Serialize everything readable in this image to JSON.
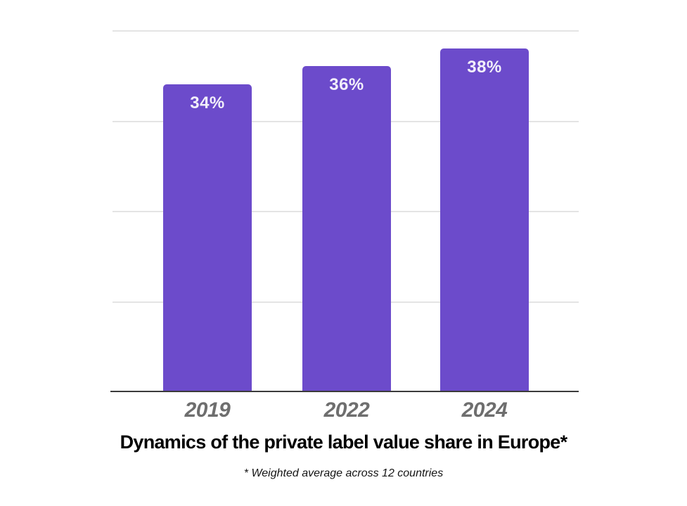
{
  "chart_data": {
    "type": "bar",
    "title": "Dynamics of the private label value share in Europe*",
    "footnote": "* Weighted average across 12 countries",
    "categories": [
      "2019",
      "2022",
      "2024"
    ],
    "values": [
      34,
      36,
      38
    ],
    "value_labels": [
      "34%",
      "36%",
      "38%"
    ],
    "ylabel": "",
    "xlabel": "",
    "ylim": [
      0,
      40
    ],
    "gridline_values": [
      40,
      30,
      20,
      10
    ],
    "grid": true,
    "legend": "none",
    "colors": {
      "bar": "#6c4bcb",
      "value_label": "#f2effa",
      "gridline": "#e4e4e4",
      "axis_line": "#3b3b3b",
      "category_label": "#6e6e6e",
      "title": "#000000",
      "footnote": "#141414",
      "background": "#ffffff"
    }
  }
}
